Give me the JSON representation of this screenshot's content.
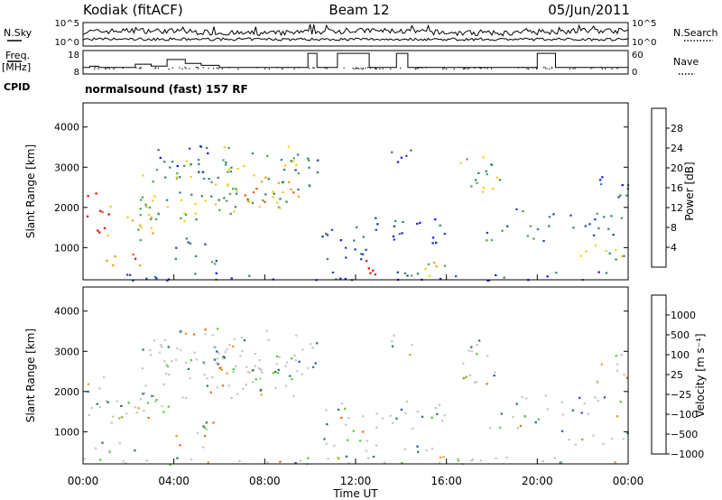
{
  "header": {
    "station": "Kodiak (fitACF)",
    "beam": "Beam 12",
    "date": "05/Jun/2011"
  },
  "left_labels": {
    "nsky": "N.Sky",
    "freq": "Freq.",
    "freq_unit": "[MHz]",
    "cpid": "CPID"
  },
  "right_labels": {
    "nsearch": "N.Search",
    "nave": "Nave"
  },
  "cpid_text": "normalsound (fast) 157 RF",
  "chart_data": [
    {
      "type": "line",
      "title": "",
      "ylabel_left": "N.Sky",
      "ylabel_right": "N.Search",
      "yticks_left": [
        "10^5",
        "10^0"
      ],
      "yticks_right": [
        "10^5",
        "10^0"
      ],
      "log_scale": true
    },
    {
      "type": "line",
      "ylabel_left": "Freq. [MHz]",
      "ylabel_right": "Nave",
      "yticks_left": [
        "18",
        "8"
      ],
      "yticks_right": [
        "60",
        "0"
      ],
      "ylim_left": [
        8,
        18
      ],
      "ylim_right": [
        0,
        60
      ],
      "freq_steps": [
        {
          "t": 0.0,
          "v": 10.8
        },
        {
          "t": 0.3,
          "v": 10.8
        },
        {
          "t": 0.3,
          "v": 11.3
        },
        {
          "t": 0.7,
          "v": 11.3
        },
        {
          "t": 0.7,
          "v": 10.8
        },
        {
          "t": 2.3,
          "v": 10.8
        },
        {
          "t": 2.3,
          "v": 12.2
        },
        {
          "t": 3.0,
          "v": 12.2
        },
        {
          "t": 3.0,
          "v": 11.4
        },
        {
          "t": 3.7,
          "v": 11.4
        },
        {
          "t": 3.7,
          "v": 14.2
        },
        {
          "t": 4.5,
          "v": 14.2
        },
        {
          "t": 4.5,
          "v": 12.5
        },
        {
          "t": 5.2,
          "v": 12.5
        },
        {
          "t": 5.2,
          "v": 11.7
        },
        {
          "t": 6.0,
          "v": 11.7
        },
        {
          "t": 6.0,
          "v": 10.8
        },
        {
          "t": 9.9,
          "v": 10.8
        },
        {
          "t": 9.9,
          "v": 16.8
        },
        {
          "t": 10.3,
          "v": 16.8
        },
        {
          "t": 10.3,
          "v": 10.8
        },
        {
          "t": 11.2,
          "v": 10.8
        },
        {
          "t": 11.2,
          "v": 16.8
        },
        {
          "t": 12.6,
          "v": 16.8
        },
        {
          "t": 12.6,
          "v": 10.8
        },
        {
          "t": 13.8,
          "v": 10.8
        },
        {
          "t": 13.8,
          "v": 16.8
        },
        {
          "t": 14.3,
          "v": 16.8
        },
        {
          "t": 14.3,
          "v": 10.8
        },
        {
          "t": 20.0,
          "v": 10.8
        },
        {
          "t": 20.0,
          "v": 16.8
        },
        {
          "t": 20.8,
          "v": 16.8
        },
        {
          "t": 20.8,
          "v": 10.8
        },
        {
          "t": 24.0,
          "v": 10.8
        }
      ]
    },
    {
      "type": "heatmap",
      "ylabel": "Slant Range [km]",
      "ylim": [
        200,
        4600
      ],
      "yticks": [
        "1000",
        "2000",
        "3000",
        "4000"
      ],
      "colorbar_label": "Power [dB]",
      "colorbar_ticks": [
        "4",
        "8",
        "12",
        "16",
        "20",
        "24",
        "28"
      ],
      "colorbar_colors": [
        "#1f1fe6",
        "#2a49b0",
        "#3a8a6c",
        "#4fa85c",
        "#f0d020",
        "#f0a020",
        "#e86010",
        "#e81010"
      ],
      "colorbar_range": [
        0,
        32
      ]
    },
    {
      "type": "heatmap",
      "ylabel": "Slant Range [km]",
      "ylim": [
        200,
        4600
      ],
      "yticks": [
        "1000",
        "2000",
        "3000",
        "4000"
      ],
      "xlabel": "Time UT",
      "xticks": [
        "00:00",
        "04:00",
        "08:00",
        "12:00",
        "16:00",
        "20:00",
        "00:00"
      ],
      "xlim": [
        0,
        24
      ],
      "colorbar_label": "Velocity [m s⁻¹]",
      "colorbar_ticks": [
        "1000",
        "500",
        "100",
        "25",
        "−25",
        "−100",
        "−500",
        "−1000"
      ],
      "colorbar_colors": [
        "#1a3cc8",
        "#2a5ab4",
        "#2f7a68",
        "#5ecc3c",
        "#c8c8c0",
        "#f0a030",
        "#ee7010",
        "#e82010"
      ]
    }
  ]
}
